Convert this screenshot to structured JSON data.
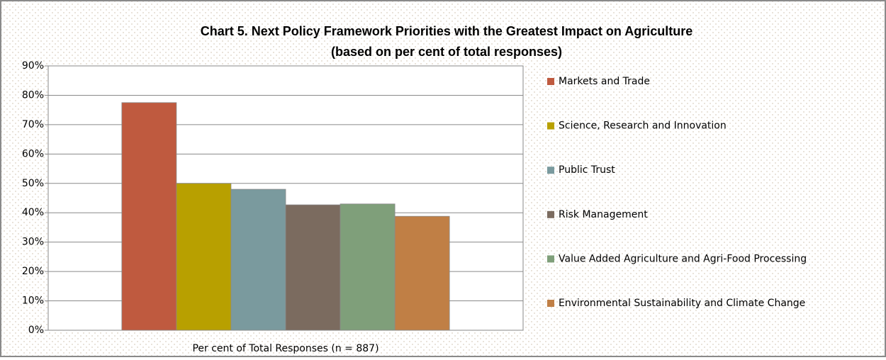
{
  "chart_data": {
    "type": "bar",
    "title": "Chart 5. Next Policy Framework Priorities with the Greatest Impact on Agriculture",
    "subtitle": "(based on per cent of total responses)",
    "categories": [
      "Per cent of Total Responses (n = 887)"
    ],
    "series": [
      {
        "name": "Markets and Trade",
        "color": "#bf5a3f",
        "values": [
          77.5
        ]
      },
      {
        "name": "Science, Research and Innovation",
        "color": "#b8a000",
        "values": [
          50
        ]
      },
      {
        "name": "Public Trust",
        "color": "#7a9a9e",
        "values": [
          48
        ]
      },
      {
        "name": "Risk Management",
        "color": "#7b6b5f",
        "values": [
          42.7
        ]
      },
      {
        "name": "Value Added Agriculture and Agri-Food Processing",
        "color": "#7f9f7a",
        "values": [
          43
        ]
      },
      {
        "name": "Environmental Sustainability and Climate Change",
        "color": "#c07f45",
        "values": [
          38.8
        ]
      }
    ],
    "ylim": [
      0,
      90
    ],
    "yticks": [
      {
        "value": 0,
        "label": "0%"
      },
      {
        "value": 10,
        "label": "10%"
      },
      {
        "value": 20,
        "label": "20%"
      },
      {
        "value": 30,
        "label": "30%"
      },
      {
        "value": 40,
        "label": "40%"
      },
      {
        "value": 50,
        "label": "50%"
      },
      {
        "value": 60,
        "label": "60%"
      },
      {
        "value": 70,
        "label": "70%"
      },
      {
        "value": 80,
        "label": "80%"
      },
      {
        "value": 90,
        "label": "90%"
      }
    ],
    "grid": true,
    "legend": "right"
  }
}
